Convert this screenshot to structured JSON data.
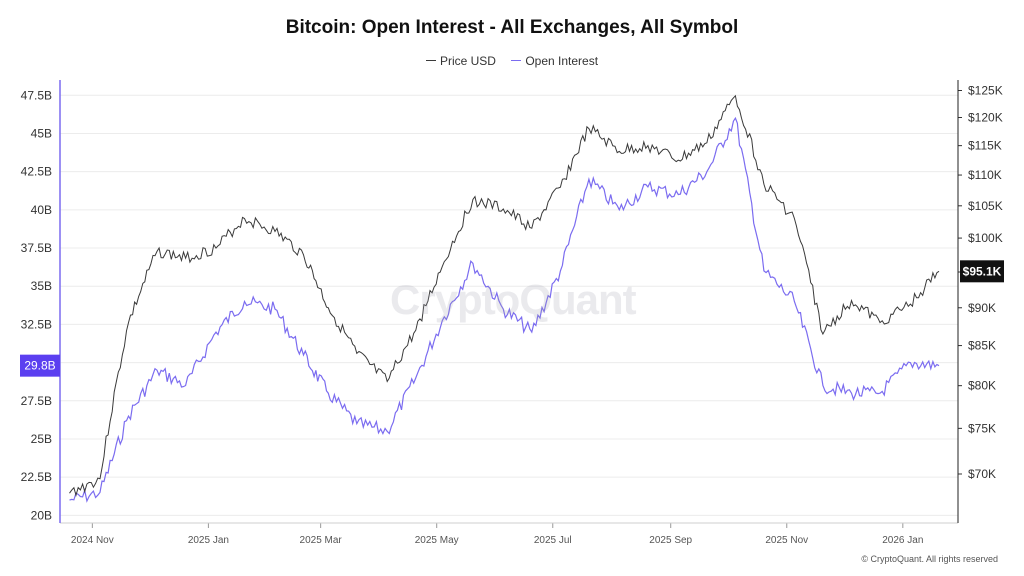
{
  "chart_data": {
    "type": "line",
    "title": "Bitcoin: Open Interest - All Exchanges, All Symbol",
    "legend_position": "top-center",
    "grid": true,
    "x_ticks": [
      "2024 Nov",
      "2025 Jan",
      "2025 Mar",
      "2025 May",
      "2025 Jul",
      "2025 Sep",
      "2025 Nov",
      "2026 Jan"
    ],
    "x_dates": [
      "2024-10-20",
      "2024-11-05",
      "2024-11-20",
      "2024-12-05",
      "2024-12-20",
      "2025-01-05",
      "2025-01-20",
      "2025-02-05",
      "2025-02-20",
      "2025-03-05",
      "2025-03-20",
      "2025-04-05",
      "2025-04-20",
      "2025-05-05",
      "2025-05-20",
      "2025-06-05",
      "2025-06-20",
      "2025-07-05",
      "2025-07-20",
      "2025-08-05",
      "2025-08-20",
      "2025-09-05",
      "2025-09-20",
      "2025-10-05",
      "2025-10-20",
      "2025-11-05",
      "2025-11-20",
      "2025-12-05",
      "2025-12-20",
      "2026-01-05",
      "2026-01-20"
    ],
    "y_left": {
      "label": "",
      "ticks": [
        "20B",
        "22.5B",
        "25B",
        "27.5B",
        "30B",
        "32.5B",
        "35B",
        "37.5B",
        "40B",
        "42.5B",
        "45B",
        "47.5B"
      ],
      "range": [
        19.5,
        48.5
      ],
      "current_label": "29.8B"
    },
    "y_right": {
      "label": "",
      "scale": "log",
      "ticks": [
        "$70K",
        "$75K",
        "$80K",
        "$85K",
        "$90K",
        "$95K",
        "$100K",
        "$105K",
        "$110K",
        "$115K",
        "$120K",
        "$125K"
      ],
      "range": [
        65000,
        127000
      ],
      "current_label": "$95.1K"
    },
    "series": [
      {
        "name": "Price USD",
        "axis": "right",
        "color": "#3a3a3a",
        "values": [
          68000,
          69500,
          88000,
          98000,
          97000,
          98500,
          103000,
          101000,
          97500,
          90000,
          84000,
          80500,
          87000,
          96500,
          106000,
          104500,
          101500,
          108000,
          118000,
          114000,
          115000,
          112500,
          115500,
          124000,
          108500,
          103000,
          86500,
          91000,
          88000,
          90500,
          95100
        ]
      },
      {
        "name": "Open Interest",
        "axis": "left",
        "color": "#7b6cf0",
        "values": [
          21.0,
          21.5,
          26.5,
          29.5,
          28.5,
          32.0,
          34.0,
          33.5,
          30.5,
          28.0,
          26.0,
          25.5,
          29.0,
          33.0,
          36.5,
          33.5,
          32.0,
          36.0,
          42.0,
          40.0,
          41.5,
          41.0,
          42.5,
          46.0,
          36.0,
          34.0,
          28.5,
          28.0,
          28.0,
          30.0,
          29.8
        ]
      }
    ]
  },
  "footer": "© CryptoQuant. All rights reserved",
  "watermark": "CryptoQuant"
}
